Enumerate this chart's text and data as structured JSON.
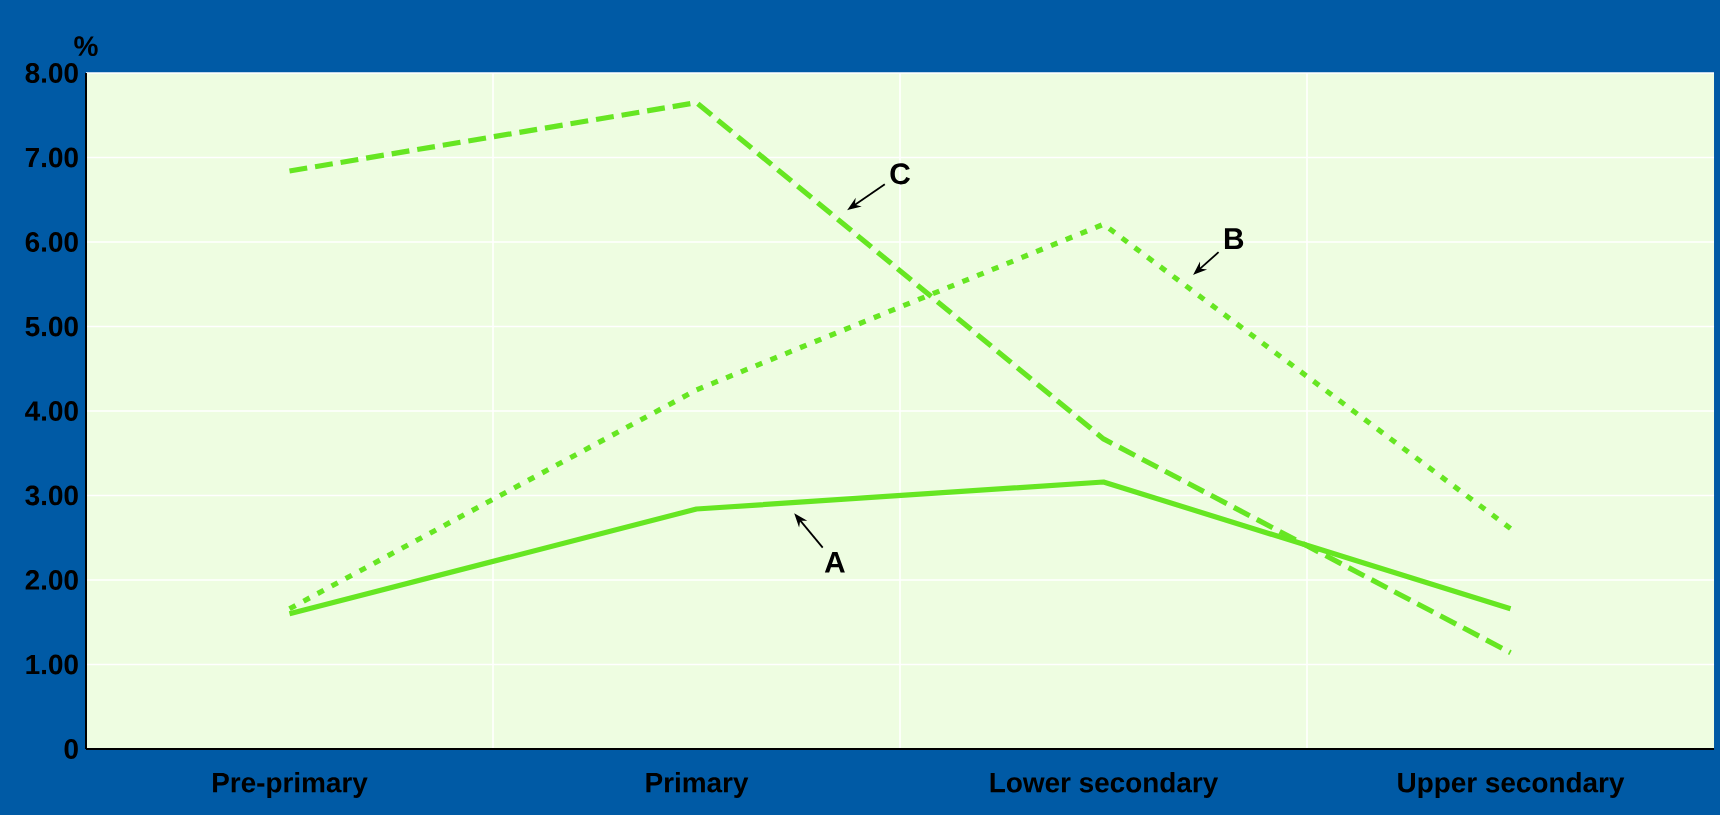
{
  "chart_data": {
    "type": "line",
    "ylabel": "%",
    "categories": [
      "Pre-primary",
      "Primary",
      "Lower secondary",
      "Upper secondary"
    ],
    "series": [
      {
        "name": "A",
        "color": "#66e622",
        "line_style": "solid",
        "values": [
          1.6,
          2.84,
          3.16,
          1.66
        ]
      },
      {
        "name": "B",
        "color": "#66e622",
        "line_style": "dotted",
        "values": [
          1.66,
          4.25,
          6.21,
          2.61
        ]
      },
      {
        "name": "C",
        "color": "#66e622",
        "line_style": "dashed",
        "values": [
          6.84,
          7.65,
          3.67,
          1.14
        ]
      }
    ],
    "ylim": [
      0,
      8
    ],
    "yticks": [
      0,
      {
        "value": 1,
        "label": "1.00"
      },
      {
        "value": 2,
        "label": "2.00"
      },
      {
        "value": 3,
        "label": "3.00"
      },
      {
        "value": 4,
        "label": "4.00"
      },
      {
        "value": 5,
        "label": "5.00"
      },
      {
        "value": 6,
        "label": "6.00"
      },
      {
        "value": 7,
        "label": "7.00"
      },
      {
        "value": 8,
        "label": "8.00"
      }
    ],
    "grid": true,
    "marker": "none"
  }
}
